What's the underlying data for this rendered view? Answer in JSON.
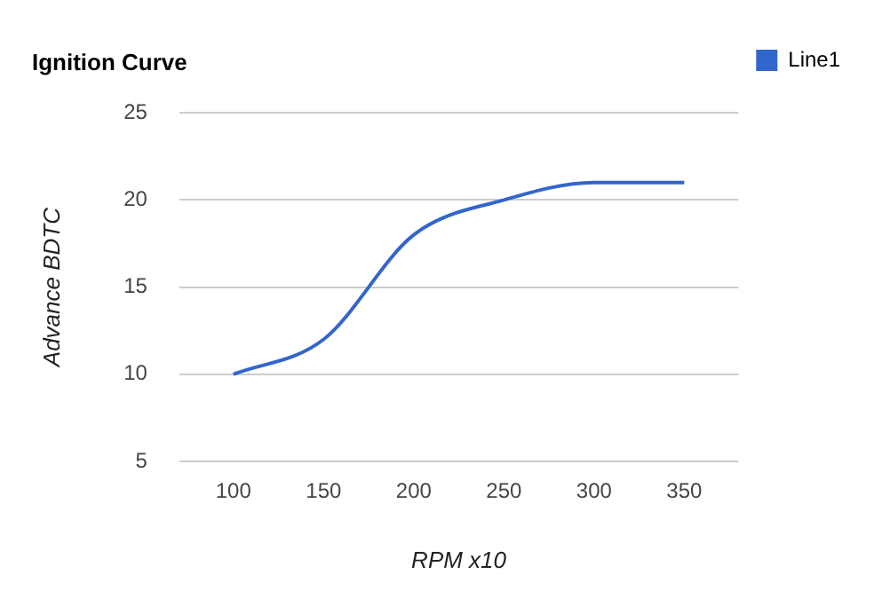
{
  "chart_data": {
    "type": "line",
    "title": "Ignition Curve",
    "xlabel": "RPM x10",
    "ylabel": "Advance BDTC",
    "x": [
      100,
      150,
      200,
      250,
      300,
      350
    ],
    "series": [
      {
        "name": "Line1",
        "color": "#3366cc",
        "values": [
          10,
          12,
          18,
          20,
          21,
          21
        ]
      }
    ],
    "xlim": [
      70,
      380
    ],
    "xticks": [
      100,
      150,
      200,
      250,
      300,
      350
    ],
    "ylim": [
      5,
      25
    ],
    "yticks": [
      5,
      10,
      15,
      20,
      25
    ],
    "grid": "y",
    "legend": "right",
    "marker": "none",
    "line_style": "solid"
  }
}
